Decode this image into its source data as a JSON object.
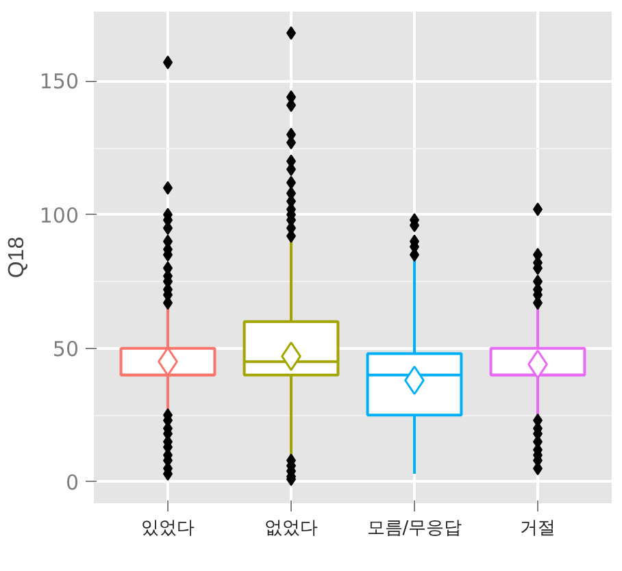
{
  "chart_data": {
    "type": "box",
    "ylabel": "Q18",
    "categories": [
      "있었다",
      "없었다",
      "모름/무응답",
      "거절"
    ],
    "colors": [
      "#f8766d",
      "#a3a500",
      "#00b0f6",
      "#e76bf3"
    ],
    "boxes": [
      {
        "low": 25,
        "q1": 40,
        "median": 40,
        "q3": 50,
        "high": 65,
        "mean": 45,
        "outliers": [
          157,
          110,
          100,
          98,
          95,
          90,
          87,
          85,
          80,
          77,
          75,
          72,
          70,
          67,
          25,
          23,
          20,
          18,
          15,
          13,
          10,
          8,
          5,
          3
        ]
      },
      {
        "low": 10,
        "q1": 40,
        "median": 45,
        "q3": 60,
        "high": 90,
        "mean": 47,
        "outliers": [
          168,
          144,
          141,
          130,
          127,
          120,
          117,
          112,
          108,
          105,
          102,
          100,
          98,
          95,
          92,
          8,
          6,
          4,
          2,
          1
        ]
      },
      {
        "low": 3,
        "q1": 25,
        "median": 40,
        "q3": 48,
        "high": 83,
        "mean": 38,
        "outliers": [
          98,
          96,
          90,
          88,
          85
        ]
      },
      {
        "low": 25,
        "q1": 40,
        "median": 40,
        "q3": 50,
        "high": 65,
        "mean": 44,
        "outliers": [
          102,
          85,
          82,
          80,
          75,
          72,
          70,
          67,
          23,
          20,
          18,
          15,
          12,
          10,
          8,
          5
        ]
      }
    ],
    "ylim": [
      -8,
      176
    ],
    "yticks": [
      0,
      50,
      100,
      150
    ],
    "grid": true
  }
}
